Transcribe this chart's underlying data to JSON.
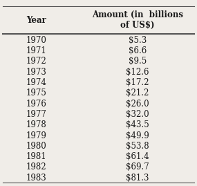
{
  "col1_header": "Year",
  "col2_header": "Amount (in  billions\nof US$)",
  "rows": [
    [
      "1970",
      "$5.3"
    ],
    [
      "1971",
      "$6.6"
    ],
    [
      "1972",
      "$9.5"
    ],
    [
      "1973",
      "$12.6"
    ],
    [
      "1974",
      "$17.2"
    ],
    [
      "1975",
      "$21.2"
    ],
    [
      "1976",
      "$26.0"
    ],
    [
      "1977",
      "$32.0"
    ],
    [
      "1978",
      "$43.5"
    ],
    [
      "1979",
      "$49.9"
    ],
    [
      "1980",
      "$53.8"
    ],
    [
      "1981",
      "$61.4"
    ],
    [
      "1982",
      "$69.7"
    ],
    [
      "1983",
      "$81.3"
    ]
  ],
  "background_color": "#f0ede8",
  "text_color": "#1a1a1a",
  "header_fontsize": 8.5,
  "data_fontsize": 8.5,
  "fig_width": 2.85,
  "fig_height": 2.69
}
